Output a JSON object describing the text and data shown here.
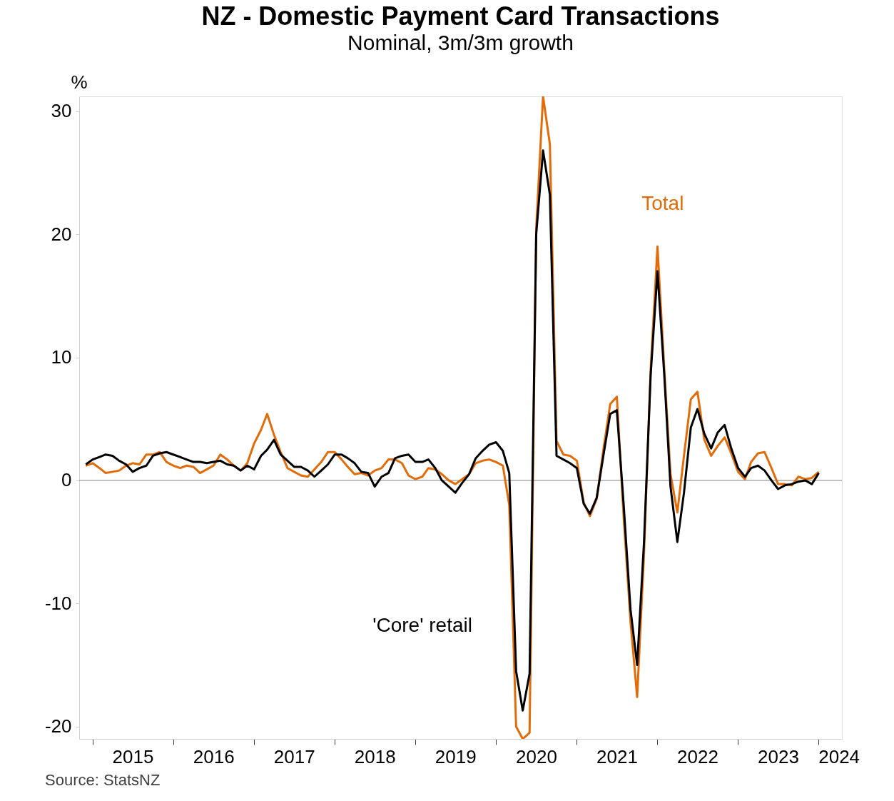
{
  "chart_data": {
    "type": "line",
    "title": "NZ - Domestic Payment Card Transactions",
    "subtitle": "Nominal, 3m/3m growth",
    "ylabel": "%",
    "x": [
      "2014-12",
      "2015-01",
      "2015-02",
      "2015-03",
      "2015-04",
      "2015-05",
      "2015-06",
      "2015-07",
      "2015-08",
      "2015-09",
      "2015-10",
      "2015-11",
      "2015-12",
      "2016-01",
      "2016-02",
      "2016-03",
      "2016-04",
      "2016-05",
      "2016-06",
      "2016-07",
      "2016-08",
      "2016-09",
      "2016-10",
      "2016-11",
      "2016-12",
      "2017-01",
      "2017-02",
      "2017-03",
      "2017-04",
      "2017-05",
      "2017-06",
      "2017-07",
      "2017-08",
      "2017-09",
      "2017-10",
      "2017-11",
      "2017-12",
      "2018-01",
      "2018-02",
      "2018-03",
      "2018-04",
      "2018-05",
      "2018-06",
      "2018-07",
      "2018-08",
      "2018-09",
      "2018-10",
      "2018-11",
      "2018-12",
      "2019-01",
      "2019-02",
      "2019-03",
      "2019-04",
      "2019-05",
      "2019-06",
      "2019-07",
      "2019-08",
      "2019-09",
      "2019-10",
      "2019-11",
      "2019-12",
      "2020-01",
      "2020-02",
      "2020-03",
      "2020-04",
      "2020-05",
      "2020-06",
      "2020-07",
      "2020-08",
      "2020-09",
      "2020-10",
      "2020-11",
      "2020-12",
      "2021-01",
      "2021-02",
      "2021-03",
      "2021-04",
      "2021-05",
      "2021-06",
      "2021-07",
      "2021-08",
      "2021-09",
      "2021-10",
      "2021-11",
      "2021-12",
      "2022-01",
      "2022-02",
      "2022-03",
      "2022-04",
      "2022-05",
      "2022-06",
      "2022-07",
      "2022-08",
      "2022-09",
      "2022-10",
      "2022-11",
      "2022-12",
      "2023-01",
      "2023-02",
      "2023-03",
      "2023-04",
      "2023-05",
      "2023-06",
      "2023-07",
      "2023-08",
      "2023-09",
      "2023-10",
      "2023-11",
      "2023-12",
      "2024-01"
    ],
    "series": [
      {
        "name": "Total",
        "color": "#e36c09",
        "values": [
          1.2,
          1.4,
          1.0,
          0.6,
          0.7,
          0.8,
          1.2,
          1.4,
          1.3,
          2.1,
          2.1,
          2.3,
          1.5,
          1.2,
          1.0,
          1.2,
          1.1,
          0.6,
          0.9,
          1.2,
          2.1,
          1.7,
          1.2,
          0.8,
          1.4,
          3.0,
          4.1,
          5.4,
          3.7,
          2.3,
          1.0,
          0.7,
          0.4,
          0.3,
          0.9,
          1.5,
          2.3,
          2.3,
          1.7,
          1.1,
          0.5,
          0.6,
          0.4,
          0.8,
          1.0,
          1.7,
          1.7,
          1.4,
          0.4,
          0.1,
          0.3,
          1.0,
          0.9,
          0.5,
          0.0,
          -0.3,
          0.1,
          0.5,
          1.4,
          1.6,
          1.7,
          1.5,
          1.2,
          -2.0,
          -20.0,
          -21.0,
          -20.5,
          20.5,
          31.2,
          27.3,
          3.2,
          2.1,
          2.0,
          1.6,
          -1.8,
          -2.9,
          -1.5,
          2.5,
          6.2,
          6.8,
          -3.0,
          -11.5,
          -17.6,
          -6.0,
          9.0,
          19.0,
          9.0,
          0.5,
          -2.6,
          2.0,
          6.6,
          7.2,
          3.3,
          2.0,
          2.8,
          3.5,
          2.2,
          0.7,
          0.1,
          1.5,
          2.2,
          2.3,
          1.0,
          -0.3,
          -0.3,
          -0.4,
          0.3,
          0.1,
          0.2,
          0.7
        ]
      },
      {
        "name": "'Core' retail",
        "color": "#000000",
        "values": [
          1.3,
          1.7,
          1.9,
          2.1,
          2.0,
          1.6,
          1.3,
          0.7,
          1.0,
          1.2,
          2.0,
          2.2,
          2.3,
          2.1,
          1.9,
          1.7,
          1.5,
          1.5,
          1.4,
          1.5,
          1.6,
          1.3,
          1.2,
          0.8,
          1.2,
          0.9,
          2.0,
          2.5,
          3.3,
          2.1,
          1.6,
          1.1,
          1.1,
          0.8,
          0.3,
          0.8,
          1.3,
          2.1,
          2.1,
          1.8,
          1.4,
          0.7,
          0.6,
          -0.5,
          0.3,
          0.6,
          1.8,
          2.0,
          2.1,
          1.5,
          1.5,
          1.7,
          1.0,
          0.0,
          -0.5,
          -1.0,
          -0.2,
          0.5,
          1.8,
          2.4,
          2.9,
          3.1,
          2.4,
          0.6,
          -15.5,
          -18.7,
          -15.7,
          20.0,
          26.8,
          23.2,
          2.0,
          1.7,
          1.4,
          1.0,
          -1.9,
          -2.7,
          -1.4,
          2.0,
          5.4,
          5.7,
          -2.0,
          -10.5,
          -15.0,
          -5.0,
          8.5,
          17.0,
          8.5,
          -0.5,
          -5.0,
          -1.0,
          4.3,
          5.8,
          3.8,
          2.6,
          3.9,
          4.5,
          2.6,
          1.0,
          0.3,
          1.0,
          1.2,
          0.8,
          0.0,
          -0.7,
          -0.4,
          -0.3,
          -0.1,
          0.0,
          -0.3,
          0.6
        ]
      }
    ],
    "ylim": [
      -21.0,
      31.2
    ],
    "yticks": [
      -20,
      -10,
      0,
      10,
      20,
      30
    ],
    "xlim": [
      "2014-11",
      "2024-04-15"
    ],
    "xticks": [
      {
        "value": "2015-01",
        "label": null
      },
      {
        "value": "2016-01",
        "label": null
      },
      {
        "value": "2017-01",
        "label": null
      },
      {
        "value": "2018-01",
        "label": null
      },
      {
        "value": "2019-01",
        "label": null
      },
      {
        "value": "2020-01",
        "label": null
      },
      {
        "value": "2021-01",
        "label": null
      },
      {
        "value": "2022-01",
        "label": null
      },
      {
        "value": "2023-01",
        "label": null
      },
      {
        "value": "2024-01",
        "label": null
      },
      {
        "value": "2015-07",
        "label": "2015"
      },
      {
        "value": "2016-07",
        "label": "2016"
      },
      {
        "value": "2017-07",
        "label": "2017"
      },
      {
        "value": "2018-07",
        "label": "2018"
      },
      {
        "value": "2019-07",
        "label": "2019"
      },
      {
        "value": "2020-07",
        "label": "2020"
      },
      {
        "value": "2021-07",
        "label": "2021"
      },
      {
        "value": "2022-07",
        "label": "2022"
      },
      {
        "value": "2023-07",
        "label": "2023"
      },
      {
        "value": "2024-04",
        "label": "2024"
      }
    ],
    "ref_lines": [
      {
        "axis": "y",
        "value": 0,
        "color": "#808080"
      }
    ],
    "grid": false,
    "annotations": [
      "Source: StatsNZ"
    ]
  }
}
